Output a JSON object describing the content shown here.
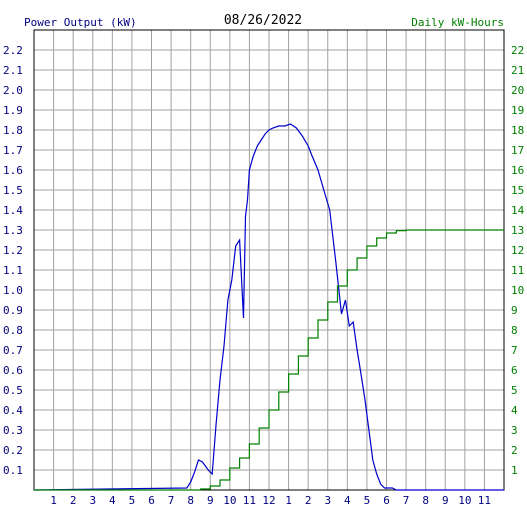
{
  "chart_data": {
    "type": "line",
    "title": "08/26/2022",
    "y_left_label": "Power Output (kW)",
    "y_right_label": "Daily kW-Hours",
    "x_tick_labels": [
      "1",
      "2",
      "3",
      "4",
      "5",
      "6",
      "7",
      "8",
      "9",
      "10",
      "11",
      "12",
      "1",
      "2",
      "3",
      "4",
      "5",
      "6",
      "7",
      "8",
      "9",
      "10",
      "11"
    ],
    "y_left_ticks": [
      "0.1",
      "0.2",
      "0.3",
      "0.4",
      "0.5",
      "0.6",
      "0.7",
      "0.8",
      "0.9",
      "1.0",
      "1.1",
      "1.2",
      "1.3",
      "1.4",
      "1.5",
      "1.6",
      "1.7",
      "1.8",
      "1.9",
      "2.0",
      "2.1",
      "2.2"
    ],
    "y_right_ticks": [
      "1",
      "2",
      "3",
      "4",
      "5",
      "6",
      "7",
      "8",
      "9",
      "10",
      "11",
      "12",
      "13",
      "14",
      "15",
      "16",
      "17",
      "18",
      "19",
      "20",
      "21",
      "22"
    ],
    "xlim": [
      0,
      24
    ],
    "ylim_left": [
      0,
      2.3
    ],
    "ylim_right": [
      0,
      23
    ],
    "grid": true,
    "colors": {
      "power": "#0000cc",
      "energy": "#008000",
      "title": "#000000",
      "grid": "#a0a0a0",
      "left_axis_text": "#000080",
      "right_axis_text": "#008000"
    },
    "series": [
      {
        "name": "Power Output (kW)",
        "axis": "left",
        "color": "#0000cc",
        "x": [
          0,
          7.8,
          8.0,
          8.2,
          8.4,
          8.6,
          8.9,
          9.1,
          9.3,
          9.5,
          9.7,
          9.9,
          10.1,
          10.3,
          10.5,
          10.7,
          10.8,
          10.9,
          11.0,
          11.2,
          11.4,
          11.6,
          11.8,
          12.0,
          12.2,
          12.5,
          12.8,
          13.1,
          13.4,
          13.7,
          14.0,
          14.2,
          14.5,
          14.8,
          15.1,
          15.4,
          15.7,
          15.9,
          16.1,
          16.3,
          16.5,
          16.7,
          16.9,
          17.1,
          17.3,
          17.5,
          17.7,
          17.9,
          18.1,
          18.3,
          18.5,
          18.7,
          18.9,
          19.2,
          19.5,
          19.8,
          24
        ],
        "y": [
          0,
          0.01,
          0.04,
          0.09,
          0.15,
          0.14,
          0.1,
          0.08,
          0.33,
          0.55,
          0.72,
          0.95,
          1.05,
          1.22,
          1.25,
          0.86,
          1.37,
          1.45,
          1.6,
          1.67,
          1.72,
          1.75,
          1.78,
          1.8,
          1.81,
          1.82,
          1.82,
          1.83,
          1.81,
          1.77,
          1.72,
          1.67,
          1.6,
          1.5,
          1.4,
          1.15,
          0.88,
          0.95,
          0.82,
          0.84,
          0.7,
          0.58,
          0.45,
          0.3,
          0.15,
          0.08,
          0.03,
          0.01,
          0.01,
          0.01,
          0,
          0,
          0,
          0,
          0,
          0,
          0
        ]
      },
      {
        "name": "Daily kW-Hours",
        "axis": "right",
        "color": "#008000",
        "x": [
          0,
          7.8,
          8.5,
          9.0,
          9.5,
          10.0,
          10.5,
          11.0,
          11.5,
          12.0,
          12.5,
          13.0,
          13.5,
          14.0,
          14.5,
          15.0,
          15.5,
          16.0,
          16.5,
          17.0,
          17.5,
          18.0,
          18.5,
          19.0,
          19.5,
          20.0,
          24
        ],
        "y": [
          0,
          0.0,
          0.05,
          0.2,
          0.5,
          1.1,
          1.6,
          2.3,
          3.1,
          4.0,
          4.9,
          5.8,
          6.7,
          7.6,
          8.5,
          9.4,
          10.2,
          11.0,
          11.6,
          12.2,
          12.6,
          12.85,
          12.97,
          13.0,
          13.0,
          13.0,
          13.0
        ]
      }
    ]
  }
}
